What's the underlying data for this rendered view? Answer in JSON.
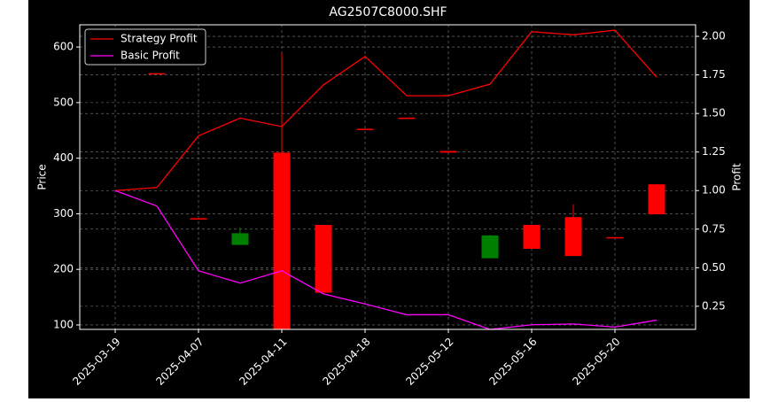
{
  "chart_data": {
    "type": "candlestick",
    "title": "AG2507C8000.SHF",
    "ylabel": "Price",
    "y2label": "Profit",
    "categories": [
      "2025-03-19",
      null,
      "2025-04-07",
      null,
      "2025-04-11",
      null,
      "2025-04-18",
      null,
      "2025-05-12",
      null,
      "2025-05-16",
      null,
      "2025-05-20",
      null
    ],
    "open": [
      null,
      553,
      292,
      265,
      85,
      158,
      453,
      473,
      410,
      261,
      237,
      224,
      258,
      299
    ],
    "high": [
      null,
      553,
      292,
      275,
      589,
      280,
      453,
      473,
      413,
      262,
      280,
      317,
      258,
      353
    ],
    "low": [
      null,
      553,
      292,
      244,
      85,
      158,
      453,
      473,
      410,
      220,
      237,
      224,
      258,
      299
    ],
    "close": [
      null,
      553,
      292,
      244,
      410,
      280,
      453,
      473,
      413,
      220,
      280,
      294,
      258,
      353
    ],
    "up_color": "#ff0000",
    "down_color": "#008000",
    "series": [
      {
        "name": "Strategy Profit",
        "color": "#ff0000",
        "axis": "y2",
        "values": [
          1.0,
          1.02,
          1.355,
          1.47,
          1.415,
          1.685,
          1.87,
          1.615,
          1.615,
          1.69,
          2.03,
          2.01,
          2.04,
          1.735
        ]
      },
      {
        "name": "Basic Profit",
        "color": "#ff00ff",
        "axis": "y2",
        "values": [
          1.0,
          0.9,
          0.48,
          0.4,
          0.48,
          0.33,
          0.265,
          0.195,
          0.195,
          0.1,
          0.13,
          0.135,
          0.115,
          0.16
        ]
      }
    ],
    "ylim": [
      92,
      640
    ],
    "yticks": [
      100,
      200,
      300,
      400,
      500,
      600
    ],
    "y2lim": [
      0.1,
      2.075
    ],
    "y2ticks": [
      {
        "value": 0.25,
        "label": "0.25"
      },
      {
        "value": 0.5,
        "label": "0.50"
      },
      {
        "value": 0.75,
        "label": "0.75"
      },
      {
        "value": 1.0,
        "label": "1.00"
      },
      {
        "value": 1.25,
        "label": "1.25"
      },
      {
        "value": 1.5,
        "label": "1.50"
      },
      {
        "value": 1.75,
        "label": "1.75"
      },
      {
        "value": 2.0,
        "label": "2.00"
      }
    ],
    "grid": true,
    "legend": "upper-left"
  }
}
